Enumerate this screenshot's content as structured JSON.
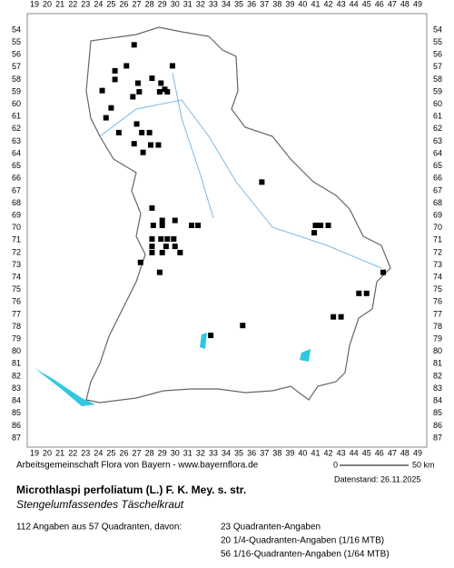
{
  "map": {
    "x_ticks": [
      19,
      20,
      21,
      22,
      23,
      24,
      25,
      26,
      27,
      28,
      29,
      30,
      31,
      32,
      33,
      34,
      35,
      36,
      37,
      38,
      39,
      40,
      41,
      42,
      43,
      44,
      45,
      46,
      47,
      48,
      49
    ],
    "y_ticks": [
      54,
      55,
      56,
      57,
      58,
      59,
      60,
      61,
      62,
      63,
      64,
      65,
      66,
      67,
      68,
      69,
      70,
      71,
      72,
      73,
      74,
      75,
      76,
      77,
      78,
      79,
      80,
      81,
      82,
      83,
      84,
      85,
      86,
      87
    ],
    "points": [
      [
        26.8,
        55.2
      ],
      [
        26.2,
        56.9
      ],
      [
        29.8,
        56.9
      ],
      [
        25.3,
        57.3
      ],
      [
        28.2,
        57.9
      ],
      [
        25.3,
        58.0
      ],
      [
        27.1,
        58.3
      ],
      [
        28.9,
        58.3
      ],
      [
        29.2,
        58.8
      ],
      [
        24.3,
        58.9
      ],
      [
        27.2,
        59.0
      ],
      [
        28.8,
        59.0
      ],
      [
        29.4,
        59.0
      ],
      [
        26.7,
        59.4
      ],
      [
        25.0,
        60.3
      ],
      [
        24.6,
        61.1
      ],
      [
        27.0,
        61.6
      ],
      [
        25.6,
        62.3
      ],
      [
        27.4,
        62.3
      ],
      [
        28.0,
        62.3
      ],
      [
        26.8,
        63.2
      ],
      [
        28.1,
        63.3
      ],
      [
        28.7,
        63.3
      ],
      [
        27.5,
        63.9
      ],
      [
        36.8,
        66.3
      ],
      [
        28.2,
        68.4
      ],
      [
        29.0,
        69.4
      ],
      [
        28.3,
        69.8
      ],
      [
        29.0,
        69.8
      ],
      [
        30.0,
        69.4
      ],
      [
        31.3,
        69.8
      ],
      [
        31.8,
        69.8
      ],
      [
        41.0,
        69.8
      ],
      [
        41.4,
        69.8
      ],
      [
        42.0,
        69.8
      ],
      [
        40.9,
        70.4
      ],
      [
        28.2,
        70.9
      ],
      [
        28.9,
        70.9
      ],
      [
        29.4,
        70.9
      ],
      [
        29.9,
        70.9
      ],
      [
        28.2,
        71.5
      ],
      [
        29.3,
        71.5
      ],
      [
        30.0,
        71.5
      ],
      [
        28.2,
        72.0
      ],
      [
        29.0,
        72.0
      ],
      [
        30.4,
        72.0
      ],
      [
        27.3,
        72.8
      ],
      [
        28.8,
        73.6
      ],
      [
        46.3,
        73.6
      ],
      [
        44.4,
        75.3
      ],
      [
        45.0,
        75.3
      ],
      [
        35.3,
        77.9
      ],
      [
        42.4,
        77.2
      ],
      [
        43.0,
        77.2
      ],
      [
        32.8,
        78.7
      ]
    ]
  },
  "footer": {
    "credit": "Arbeitsgemeinschaft Flora von Bayern - www.bayernflora.de",
    "scale_start": "0",
    "scale_end": "50 km",
    "date": "Datenstand: 26.11.2025",
    "title": "Microthlaspi perfoliatum (L.) F. K. Mey. s. str.",
    "subtitle": "Stengelumfassendes Täschelkraut",
    "summary": "112 Angaben aus 57 Quadranten, davon:",
    "counts": [
      "23 Quadranten-Angaben",
      "20 1/4-Quadranten-Angaben (1/16 MTB)",
      "56 1/16-Quadranten-Angaben (1/64 MTB)"
    ]
  }
}
